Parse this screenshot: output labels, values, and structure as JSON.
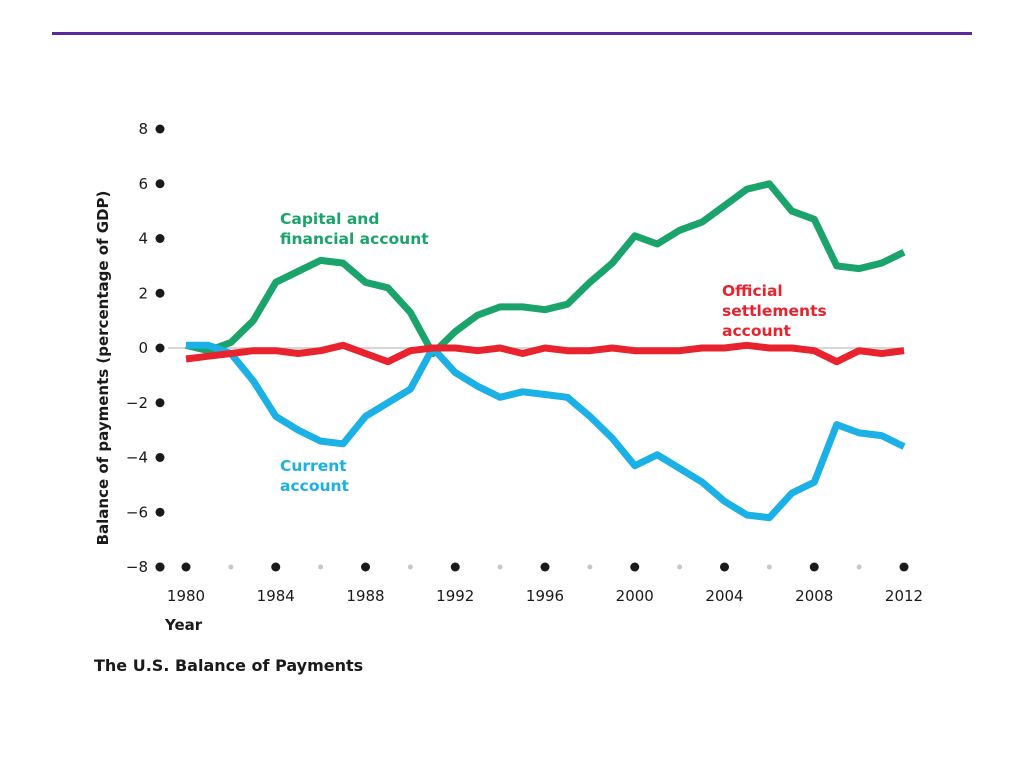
{
  "caption": "The U.S. Balance of Payments",
  "chart_data": {
    "type": "line",
    "title": "The U.S. Balance of Payments",
    "xlabel": "Year",
    "ylabel": "Balance of payments (percentage of GDP)",
    "xlim": [
      1980,
      2012
    ],
    "ylim": [
      -8,
      8
    ],
    "x_ticks": [
      1980,
      1984,
      1988,
      1992,
      1996,
      2000,
      2004,
      2008,
      2012
    ],
    "x_tick_labels": [
      "1980",
      "1984",
      "1988",
      "1992",
      "1996",
      "2000",
      "2004",
      "2008",
      "2012"
    ],
    "x_minor_ticks": [
      1982,
      1986,
      1990,
      1994,
      1998,
      2002,
      2006,
      2010
    ],
    "y_ticks": [
      8,
      6,
      4,
      2,
      0,
      -2,
      -4,
      -6,
      -8
    ],
    "y_tick_labels": [
      "8",
      "6",
      "4",
      "2",
      "0",
      "−2",
      "−4",
      "−6",
      "−8"
    ],
    "zero_line": true,
    "colors": {
      "capital": "#1aa36b",
      "current": "#1bb0e6",
      "official": "#e8232e",
      "zero_line": "#c8c8c8",
      "axis_dots": "#1a1a1a",
      "minor_dots": "#c8c8c8"
    },
    "x": [
      1980,
      1981,
      1982,
      1983,
      1984,
      1985,
      1986,
      1987,
      1988,
      1989,
      1990,
      1991,
      1992,
      1993,
      1994,
      1995,
      1996,
      1997,
      1998,
      1999,
      2000,
      2001,
      2002,
      2003,
      2004,
      2005,
      2006,
      2007,
      2008,
      2009,
      2010,
      2011,
      2012
    ],
    "series": [
      {
        "key": "capital",
        "name": "Capital and financial account",
        "label_lines": [
          "Capital and",
          "financial account"
        ],
        "values": [
          0.1,
          -0.1,
          0.2,
          1.0,
          2.4,
          2.8,
          3.2,
          3.1,
          2.4,
          2.2,
          1.3,
          -0.2,
          0.6,
          1.2,
          1.5,
          1.5,
          1.4,
          1.6,
          2.4,
          3.1,
          4.1,
          3.8,
          4.3,
          4.6,
          5.2,
          5.8,
          6.0,
          5.0,
          4.7,
          3.0,
          2.9,
          3.1,
          3.5
        ]
      },
      {
        "key": "current",
        "name": "Current account",
        "label_lines": [
          "Current",
          "account"
        ],
        "values": [
          0.1,
          0.1,
          -0.2,
          -1.2,
          -2.5,
          -3.0,
          -3.4,
          -3.5,
          -2.5,
          -2.0,
          -1.5,
          0.0,
          -0.9,
          -1.4,
          -1.8,
          -1.6,
          -1.7,
          -1.8,
          -2.5,
          -3.3,
          -4.3,
          -3.9,
          -4.4,
          -4.9,
          -5.6,
          -6.1,
          -6.2,
          -5.3,
          -4.9,
          -2.8,
          -3.1,
          -3.2,
          -3.6
        ]
      },
      {
        "key": "official",
        "name": "Official settlements account",
        "label_lines": [
          "Official",
          "settlements",
          "account"
        ],
        "values": [
          -0.4,
          -0.3,
          -0.2,
          -0.1,
          -0.1,
          -0.2,
          -0.1,
          0.1,
          -0.2,
          -0.5,
          -0.1,
          0.0,
          0.0,
          -0.1,
          0.0,
          -0.2,
          0.0,
          -0.1,
          -0.1,
          0.0,
          -0.1,
          -0.1,
          -0.1,
          0.0,
          0.0,
          0.1,
          0.0,
          0.0,
          -0.1,
          -0.5,
          -0.1,
          -0.2,
          -0.1
        ]
      }
    ]
  }
}
